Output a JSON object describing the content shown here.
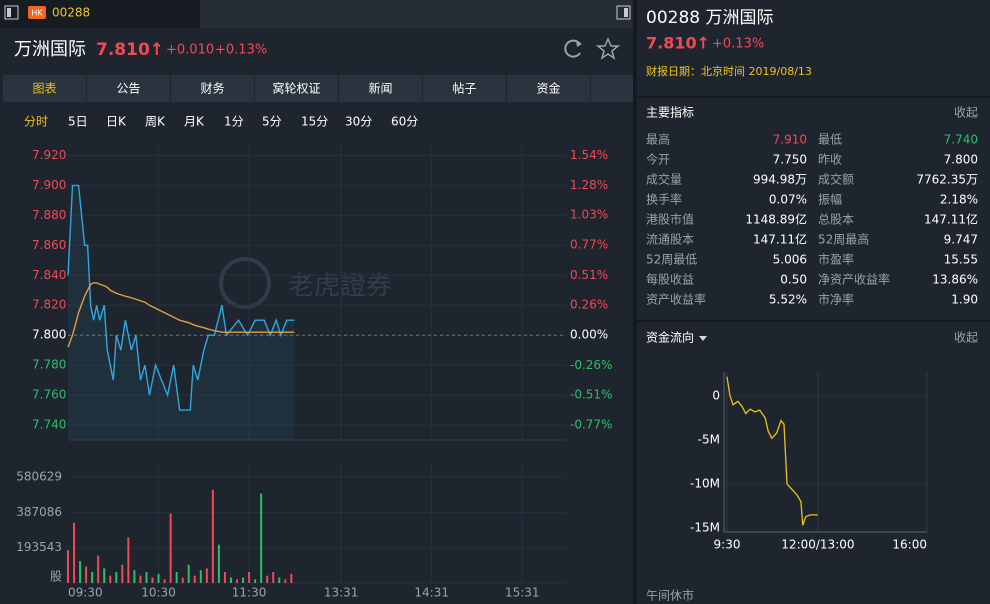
{
  "header": {
    "badge": "HK",
    "code": "00288"
  },
  "quote": {
    "name": "万洲国际",
    "price": "7.810↑",
    "change": "+0.010",
    "change_pct": "+0.13%"
  },
  "tabs": [
    "图表",
    "公告",
    "财务",
    "窝轮权证",
    "新闻",
    "帖子",
    "资金"
  ],
  "active_tab": 0,
  "periods": [
    "分时",
    "5日",
    "日K",
    "周K",
    "月K",
    "1分",
    "5分",
    "15分",
    "30分",
    "60分"
  ],
  "active_period": 0,
  "watermark": "老虎證券",
  "chart_data": [
    {
      "type": "line",
      "x": [
        0,
        3,
        7,
        11,
        13,
        15,
        17,
        19,
        21,
        24,
        26,
        28,
        30,
        32,
        35,
        38,
        42,
        45,
        48,
        51,
        54,
        58,
        62,
        66,
        70,
        74,
        81,
        83,
        86,
        90,
        93,
        97,
        102,
        105,
        113,
        119,
        124,
        130,
        134,
        138,
        141,
        145,
        150
      ],
      "series": [
        {
          "color": "#2fa8e0",
          "values": [
            7.84,
            7.9,
            7.9,
            7.86,
            7.86,
            7.82,
            7.81,
            7.82,
            7.81,
            7.82,
            7.79,
            7.78,
            7.77,
            7.8,
            7.79,
            7.81,
            7.79,
            7.8,
            7.77,
            7.78,
            7.76,
            7.78,
            7.77,
            7.76,
            7.78,
            7.75,
            7.75,
            7.78,
            7.77,
            7.79,
            7.8,
            7.8,
            7.82,
            7.8,
            7.81,
            7.8,
            7.81,
            7.81,
            7.8,
            7.81,
            7.8,
            7.81,
            7.81
          ]
        },
        {
          "color": "#e0a040",
          "values": [
            7.792,
            7.8,
            7.815,
            7.826,
            7.83,
            7.834,
            7.835,
            7.835,
            7.834,
            7.833,
            7.832,
            7.83,
            7.829,
            7.828,
            7.827,
            7.826,
            7.825,
            7.824,
            7.823,
            7.822,
            7.82,
            7.818,
            7.816,
            7.814,
            7.812,
            7.81,
            7.808,
            7.807,
            7.806,
            7.805,
            7.804,
            7.803,
            7.802,
            7.802,
            7.802,
            7.802,
            7.802,
            7.802,
            7.802,
            7.802,
            7.802,
            7.802,
            7.802
          ]
        }
      ],
      "xlim": [
        0,
        330
      ],
      "xticks": [
        {
          "value": 0,
          "label": "09:30"
        },
        {
          "value": 60,
          "label": "10:30"
        },
        {
          "value": 120,
          "label": "11:30"
        },
        {
          "value": 181,
          "label": "13:31"
        },
        {
          "value": 241,
          "label": "14:31"
        },
        {
          "value": 301,
          "label": "15:31"
        }
      ],
      "ylim": [
        7.73,
        7.927
      ],
      "yticks": [
        {
          "value": 7.92,
          "label": "7.920"
        },
        {
          "value": 7.9,
          "label": "7.900"
        },
        {
          "value": 7.88,
          "label": "7.880"
        },
        {
          "value": 7.86,
          "label": "7.860"
        },
        {
          "value": 7.84,
          "label": "7.840"
        },
        {
          "value": 7.82,
          "label": "7.820"
        },
        {
          "value": 7.8,
          "label": "7.800"
        },
        {
          "value": 7.78,
          "label": "7.780"
        },
        {
          "value": 7.76,
          "label": "7.760"
        },
        {
          "value": 7.74,
          "label": "7.740"
        }
      ],
      "y2lim": [
        -0.897,
        1.628
      ],
      "y2ticks": [
        {
          "value": 1.54,
          "label": "1.54%"
        },
        {
          "value": 1.28,
          "label": "1.28%"
        },
        {
          "value": 1.03,
          "label": "1.03%"
        },
        {
          "value": 0.77,
          "label": "0.77%"
        },
        {
          "value": 0.51,
          "label": "0.51%"
        },
        {
          "value": 0.26,
          "label": "0.26%"
        },
        {
          "value": 0,
          "label": "0.00%"
        },
        {
          "value": -0.26,
          "label": "-0.26%"
        },
        {
          "value": -0.51,
          "label": "-0.51%"
        },
        {
          "value": -0.77,
          "label": "-0.77%"
        }
      ],
      "grid": true
    },
    {
      "type": "bar",
      "x": [
        0,
        4,
        8,
        12,
        16,
        20,
        24,
        28,
        32,
        36,
        40,
        44,
        48,
        52,
        56,
        60,
        64,
        68,
        72,
        76,
        80,
        84,
        88,
        92,
        96,
        100,
        104,
        108,
        112,
        116,
        120,
        124,
        128,
        132,
        136,
        140,
        144,
        148
      ],
      "values": [
        180000,
        330000,
        120000,
        90000,
        60000,
        150000,
        80000,
        40000,
        60000,
        100000,
        250000,
        70000,
        40000,
        60000,
        30000,
        50000,
        20000,
        380000,
        60000,
        30000,
        100000,
        40000,
        70000,
        80000,
        510000,
        210000,
        60000,
        30000,
        20000,
        30000,
        60000,
        20000,
        490000,
        40000,
        60000,
        30000,
        20000,
        50000
      ],
      "colors": [
        "#f24957",
        "#f24957",
        "#2dbf6b",
        "#f24957",
        "#2dbf6b",
        "#f24957",
        "#2dbf6b",
        "#f24957",
        "#2dbf6b",
        "#f24957",
        "#f24957",
        "#2dbf6b",
        "#f24957",
        "#2dbf6b",
        "#f24957",
        "#2dbf6b",
        "#f24957",
        "#f24957",
        "#2dbf6b",
        "#f24957",
        "#2dbf6b",
        "#f24957",
        "#2dbf6b",
        "#f24957",
        "#f24957",
        "#2dbf6b",
        "#f24957",
        "#2dbf6b",
        "#f24957",
        "#2dbf6b",
        "#f24957",
        "#2dbf6b",
        "#2dbf6b",
        "#f24957",
        "#f24957",
        "#2dbf6b",
        "#f24957",
        "#f24957"
      ],
      "xlim": [
        0,
        330
      ],
      "ylim": [
        0,
        674000
      ],
      "yticks": [
        {
          "value": 0,
          "label": "股"
        },
        193543,
        387086,
        580629
      ]
    },
    {
      "type": "line",
      "x": [
        0,
        5,
        10,
        18,
        25,
        31,
        38,
        46,
        54,
        63,
        68,
        74,
        82,
        89,
        94,
        99,
        107,
        115,
        122,
        125,
        130,
        137,
        150
      ],
      "series": [
        {
          "color": "#e8c21a",
          "values": [
            2200000,
            0,
            -1000000,
            -600000,
            -1200000,
            -2000000,
            -1500000,
            -1800000,
            -1600000,
            -2500000,
            -4000000,
            -4800000,
            -4200000,
            -2800000,
            -3200000,
            -10000000,
            -10600000,
            -11200000,
            -12000000,
            -14700000,
            -13700000,
            -13500000,
            -13500000
          ]
        }
      ],
      "xlim": [
        0,
        330
      ],
      "xticks": [
        {
          "value": 0,
          "label": "9:30"
        },
        {
          "value": 150,
          "label": "12:00/13:00"
        },
        {
          "value": 330,
          "label": "16:00"
        }
      ],
      "ylim": [
        -15450000,
        2730000
      ],
      "yticks": [
        0,
        {
          "value": -5000000,
          "label": "-5M"
        },
        {
          "value": -10000000,
          "label": "-10M"
        },
        {
          "value": -15000000,
          "label": "-15M"
        }
      ]
    }
  ],
  "side": {
    "title": "00288 万洲国际",
    "price": "7.810↑",
    "change_pct": "+0.13%",
    "report_date": "财报日期：北京时间 2019/08/13",
    "indicators_title": "主要指标",
    "collapse_1": "收起",
    "stats": [
      [
        "最高",
        "7.910",
        "最低",
        "7.740"
      ],
      [
        "今开",
        "7.750",
        "昨收",
        "7.800"
      ],
      [
        "成交量",
        "994.98万",
        "成交额",
        "7762.35万"
      ],
      [
        "换手率",
        "0.07%",
        "振幅",
        "2.18%"
      ],
      [
        "港股市值",
        "1148.89亿",
        "总股本",
        "147.11亿"
      ],
      [
        "流通股本",
        "147.11亿",
        "52周最高",
        "9.747"
      ],
      [
        "52周最低",
        "5.006",
        "市盈率",
        "15.55"
      ],
      [
        "每股收益",
        "0.50",
        "净资产收益率",
        "13.86%"
      ],
      [
        "资产收益率",
        "5.52%",
        "市净率",
        "1.90"
      ]
    ],
    "flow_title": "资金流向",
    "collapse_2": "收起",
    "midday_break": "午间休市"
  }
}
